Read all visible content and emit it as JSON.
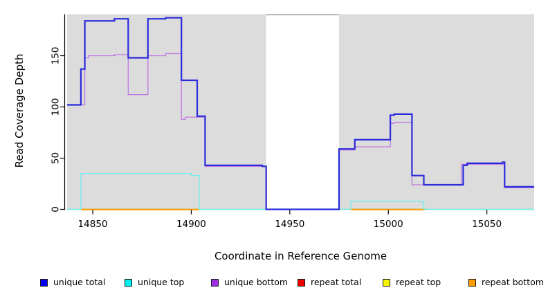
{
  "chart_data": {
    "type": "line",
    "subtype": "step-coverage-plot",
    "title": "",
    "xlabel": "Coordinate in Reference Genome",
    "ylabel": "Read Coverage Depth",
    "xlim": [
      14837,
      15074
    ],
    "ylim": [
      0,
      191
    ],
    "xticks": [
      14850,
      14900,
      14950,
      15000,
      15050
    ],
    "yticks": [
      0,
      50,
      100,
      150
    ],
    "grid": false,
    "legend_position": "bottom",
    "panel_bg": "#dcdcdc",
    "page_bg": "#ffffff",
    "axis_color": "#000000",
    "missing_data_region": {
      "x_start": 14938,
      "x_end": 14975,
      "fill": "#ffffff",
      "top_border": "#a3a3a3"
    },
    "legend": [
      {
        "label": "unique total",
        "color": "#0000ee"
      },
      {
        "label": "unique top",
        "color": "#00eeee"
      },
      {
        "label": "unique bottom",
        "color": "#9c2fe0"
      },
      {
        "label": "repeat total",
        "color": "#ee0000"
      },
      {
        "label": "repeat top",
        "color": "#f5f500"
      },
      {
        "label": "repeat bottom",
        "color": "#ff9d00"
      }
    ],
    "series": [
      {
        "name": "repeat total",
        "color": "#dd0000",
        "width": 1,
        "steps": [
          [
            14837,
            0
          ],
          [
            15074,
            0
          ]
        ]
      },
      {
        "name": "repeat top",
        "color": "#f0f000",
        "width": 1,
        "steps": [
          [
            14837,
            0
          ],
          [
            15074,
            0
          ]
        ]
      },
      {
        "name": "zero baseline",
        "color": "#8ccf8c",
        "width": 1.5,
        "steps": [
          [
            14837,
            0
          ],
          [
            15074,
            0
          ]
        ]
      },
      {
        "name": "repeat bottom",
        "color": "#ff9d00",
        "width": 2.2,
        "zero_segments": [
          [
            14844,
            14904
          ],
          [
            14980,
            15019
          ]
        ]
      },
      {
        "name": "unique top",
        "color": "#76eded",
        "width": 1.4,
        "steps": [
          [
            14837,
            0
          ],
          [
            14844,
            35
          ],
          [
            14900,
            33
          ],
          [
            14904,
            0
          ],
          [
            14981,
            8
          ],
          [
            15017,
            7
          ],
          [
            15018,
            0
          ],
          [
            15074,
            0
          ]
        ]
      },
      {
        "name": "unique bottom",
        "color": "#bd77e0",
        "width": 1.3,
        "steps": [
          [
            14837,
            102
          ],
          [
            14846,
            148
          ],
          [
            14848,
            150
          ],
          [
            14861,
            151
          ],
          [
            14868,
            112
          ],
          [
            14878,
            150
          ],
          [
            14887,
            152
          ],
          [
            14895,
            88
          ],
          [
            14897,
            90
          ],
          [
            14907,
            42
          ],
          [
            14938,
            0
          ],
          [
            14975,
            58
          ],
          [
            14983,
            61
          ],
          [
            15001,
            84
          ],
          [
            15003,
            85
          ],
          [
            15012,
            24
          ],
          [
            15037,
            44
          ],
          [
            15059,
            21
          ],
          [
            15074,
            21
          ]
        ]
      },
      {
        "name": "unique total",
        "color": "#2b2bdc",
        "width": 2.2,
        "steps": [
          [
            14837,
            102
          ],
          [
            14844,
            137
          ],
          [
            14846,
            184
          ],
          [
            14861,
            186
          ],
          [
            14868,
            148
          ],
          [
            14878,
            186
          ],
          [
            14887,
            187
          ],
          [
            14895,
            126
          ],
          [
            14903,
            91
          ],
          [
            14907,
            43
          ],
          [
            14936,
            42
          ],
          [
            14938,
            0
          ],
          [
            14975,
            59
          ],
          [
            14983,
            68
          ],
          [
            15001,
            92
          ],
          [
            15003,
            93
          ],
          [
            15012,
            33
          ],
          [
            15018,
            24
          ],
          [
            15038,
            43
          ],
          [
            15040,
            45
          ],
          [
            15058,
            46
          ],
          [
            15059,
            22
          ],
          [
            15074,
            22
          ]
        ]
      }
    ]
  }
}
